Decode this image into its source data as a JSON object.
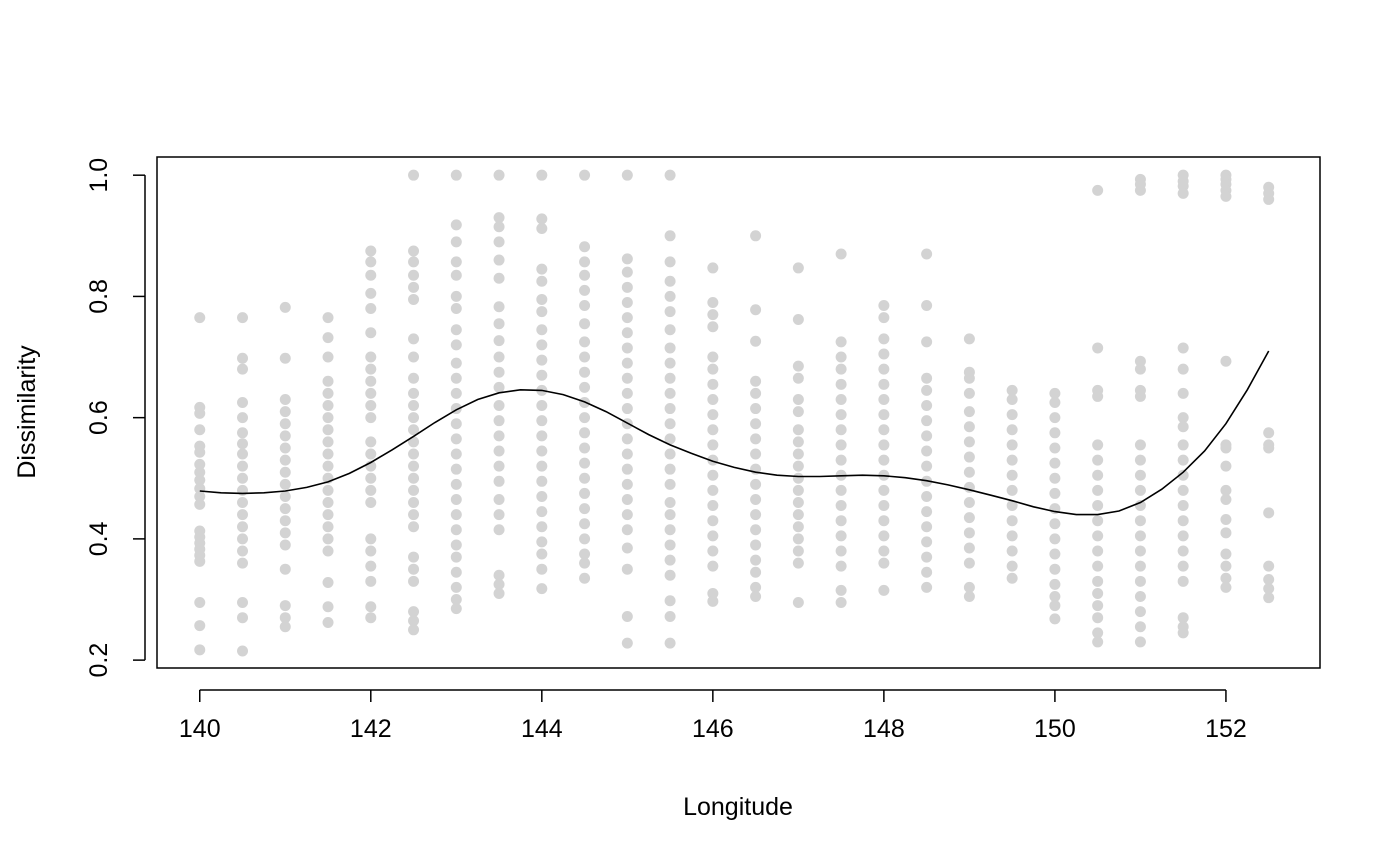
{
  "chart_data": {
    "type": "scatter",
    "xlabel": "Longitude",
    "ylabel": "Dissimilarity",
    "xlim": [
      139.5,
      153.1
    ],
    "ylim": [
      0.187,
      1.03
    ],
    "x_ticks": [
      140,
      142,
      144,
      146,
      148,
      150,
      152
    ],
    "y_ticks": [
      0.2,
      0.4,
      0.6,
      0.8,
      1.0
    ],
    "x_tick_labels": [
      "140",
      "142",
      "144",
      "146",
      "148",
      "150",
      "152"
    ],
    "y_tick_labels": [
      "0.2",
      "0.4",
      "0.6",
      "0.8",
      "1.0"
    ],
    "grid": false,
    "legend": "none",
    "point_color": "#d3d3d3",
    "line_color": "#000000",
    "points": [
      {
        "x": 140.0,
        "y": [
          0.765,
          0.617,
          0.607,
          0.58,
          0.553,
          0.543,
          0.523,
          0.51,
          0.497,
          0.483,
          0.47,
          0.457,
          0.413,
          0.403,
          0.393,
          0.383,
          0.373,
          0.363,
          0.295,
          0.257,
          0.217
        ]
      },
      {
        "x": 140.5,
        "y": [
          0.765,
          0.698,
          0.68,
          0.625,
          0.6,
          0.575,
          0.557,
          0.54,
          0.52,
          0.5,
          0.48,
          0.46,
          0.44,
          0.42,
          0.4,
          0.38,
          0.36,
          0.295,
          0.27,
          0.215
        ]
      },
      {
        "x": 141.0,
        "y": [
          0.782,
          0.698,
          0.63,
          0.61,
          0.59,
          0.57,
          0.55,
          0.53,
          0.51,
          0.49,
          0.47,
          0.45,
          0.43,
          0.41,
          0.39,
          0.35,
          0.29,
          0.27,
          0.255
        ]
      },
      {
        "x": 141.5,
        "y": [
          0.765,
          0.732,
          0.7,
          0.66,
          0.64,
          0.62,
          0.6,
          0.58,
          0.56,
          0.54,
          0.52,
          0.5,
          0.48,
          0.46,
          0.44,
          0.42,
          0.4,
          0.38,
          0.328,
          0.288,
          0.262
        ]
      },
      {
        "x": 142.0,
        "y": [
          0.875,
          0.857,
          0.835,
          0.805,
          0.78,
          0.74,
          0.7,
          0.68,
          0.66,
          0.64,
          0.62,
          0.6,
          0.56,
          0.54,
          0.52,
          0.5,
          0.48,
          0.46,
          0.4,
          0.38,
          0.355,
          0.33,
          0.288,
          0.27
        ]
      },
      {
        "x": 142.5,
        "y": [
          1.0,
          0.875,
          0.857,
          0.835,
          0.815,
          0.795,
          0.73,
          0.7,
          0.665,
          0.64,
          0.62,
          0.6,
          0.58,
          0.56,
          0.54,
          0.52,
          0.5,
          0.48,
          0.46,
          0.44,
          0.42,
          0.37,
          0.35,
          0.33,
          0.28,
          0.265,
          0.25
        ]
      },
      {
        "x": 143.0,
        "y": [
          1.0,
          0.918,
          0.89,
          0.857,
          0.835,
          0.8,
          0.78,
          0.745,
          0.72,
          0.69,
          0.665,
          0.64,
          0.615,
          0.59,
          0.565,
          0.54,
          0.515,
          0.49,
          0.465,
          0.44,
          0.415,
          0.39,
          0.37,
          0.345,
          0.32,
          0.3,
          0.285
        ]
      },
      {
        "x": 143.5,
        "y": [
          1.0,
          0.93,
          0.915,
          0.89,
          0.86,
          0.83,
          0.783,
          0.755,
          0.727,
          0.7,
          0.675,
          0.65,
          0.62,
          0.595,
          0.57,
          0.545,
          0.52,
          0.495,
          0.465,
          0.44,
          0.415,
          0.34,
          0.325,
          0.31
        ]
      },
      {
        "x": 144.0,
        "y": [
          1.0,
          0.928,
          0.912,
          0.845,
          0.825,
          0.795,
          0.775,
          0.745,
          0.72,
          0.695,
          0.67,
          0.645,
          0.62,
          0.595,
          0.57,
          0.545,
          0.52,
          0.495,
          0.47,
          0.445,
          0.42,
          0.395,
          0.375,
          0.35,
          0.318
        ]
      },
      {
        "x": 144.5,
        "y": [
          1.0,
          0.882,
          0.857,
          0.835,
          0.81,
          0.785,
          0.755,
          0.725,
          0.7,
          0.675,
          0.65,
          0.625,
          0.6,
          0.575,
          0.55,
          0.525,
          0.5,
          0.475,
          0.45,
          0.425,
          0.4,
          0.375,
          0.36,
          0.335
        ]
      },
      {
        "x": 145.0,
        "y": [
          1.0,
          0.862,
          0.84,
          0.815,
          0.79,
          0.765,
          0.74,
          0.715,
          0.69,
          0.665,
          0.64,
          0.615,
          0.59,
          0.565,
          0.54,
          0.515,
          0.49,
          0.465,
          0.44,
          0.415,
          0.385,
          0.35,
          0.272,
          0.228
        ]
      },
      {
        "x": 145.5,
        "y": [
          1.0,
          0.9,
          0.857,
          0.825,
          0.8,
          0.775,
          0.745,
          0.715,
          0.69,
          0.665,
          0.64,
          0.615,
          0.59,
          0.565,
          0.54,
          0.515,
          0.49,
          0.46,
          0.44,
          0.415,
          0.39,
          0.365,
          0.34,
          0.298,
          0.272,
          0.228
        ]
      },
      {
        "x": 146.0,
        "y": [
          0.847,
          0.79,
          0.77,
          0.75,
          0.7,
          0.68,
          0.655,
          0.63,
          0.605,
          0.58,
          0.555,
          0.53,
          0.505,
          0.48,
          0.455,
          0.43,
          0.405,
          0.38,
          0.355,
          0.31,
          0.297
        ]
      },
      {
        "x": 146.5,
        "y": [
          0.9,
          0.778,
          0.726,
          0.66,
          0.64,
          0.615,
          0.59,
          0.565,
          0.54,
          0.515,
          0.49,
          0.465,
          0.44,
          0.415,
          0.39,
          0.365,
          0.345,
          0.32,
          0.305
        ]
      },
      {
        "x": 147.0,
        "y": [
          0.847,
          0.762,
          0.685,
          0.665,
          0.63,
          0.61,
          0.58,
          0.56,
          0.54,
          0.52,
          0.5,
          0.48,
          0.46,
          0.44,
          0.42,
          0.4,
          0.38,
          0.36,
          0.295
        ]
      },
      {
        "x": 147.5,
        "y": [
          0.87,
          0.725,
          0.7,
          0.68,
          0.655,
          0.63,
          0.605,
          0.58,
          0.555,
          0.53,
          0.505,
          0.48,
          0.455,
          0.43,
          0.405,
          0.38,
          0.355,
          0.315,
          0.295
        ]
      },
      {
        "x": 148.0,
        "y": [
          0.785,
          0.765,
          0.73,
          0.705,
          0.68,
          0.655,
          0.63,
          0.605,
          0.58,
          0.555,
          0.53,
          0.505,
          0.48,
          0.455,
          0.43,
          0.405,
          0.38,
          0.36,
          0.315
        ]
      },
      {
        "x": 148.5,
        "y": [
          0.87,
          0.785,
          0.725,
          0.665,
          0.645,
          0.62,
          0.595,
          0.57,
          0.545,
          0.52,
          0.495,
          0.47,
          0.445,
          0.42,
          0.395,
          0.37,
          0.345,
          0.32
        ]
      },
      {
        "x": 149.0,
        "y": [
          0.73,
          0.675,
          0.665,
          0.64,
          0.61,
          0.585,
          0.56,
          0.535,
          0.51,
          0.485,
          0.46,
          0.435,
          0.41,
          0.385,
          0.36,
          0.32,
          0.305
        ]
      },
      {
        "x": 149.5,
        "y": [
          0.645,
          0.63,
          0.605,
          0.58,
          0.555,
          0.53,
          0.505,
          0.48,
          0.455,
          0.43,
          0.405,
          0.38,
          0.355,
          0.335
        ]
      },
      {
        "x": 150.0,
        "y": [
          0.64,
          0.625,
          0.6,
          0.575,
          0.55,
          0.525,
          0.5,
          0.475,
          0.45,
          0.425,
          0.4,
          0.375,
          0.35,
          0.325,
          0.305,
          0.29,
          0.268
        ]
      },
      {
        "x": 150.5,
        "y": [
          0.975,
          0.715,
          0.645,
          0.635,
          0.555,
          0.53,
          0.505,
          0.48,
          0.455,
          0.43,
          0.405,
          0.38,
          0.355,
          0.33,
          0.31,
          0.29,
          0.27,
          0.245,
          0.23
        ]
      },
      {
        "x": 151.0,
        "y": [
          0.993,
          0.985,
          0.975,
          0.693,
          0.68,
          0.645,
          0.635,
          0.555,
          0.53,
          0.505,
          0.48,
          0.455,
          0.43,
          0.405,
          0.38,
          0.355,
          0.33,
          0.305,
          0.28,
          0.255,
          0.23
        ]
      },
      {
        "x": 151.5,
        "y": [
          1.0,
          0.99,
          0.982,
          0.97,
          0.715,
          0.68,
          0.64,
          0.6,
          0.585,
          0.555,
          0.53,
          0.505,
          0.48,
          0.455,
          0.43,
          0.405,
          0.38,
          0.355,
          0.33,
          0.27,
          0.255,
          0.245
        ]
      },
      {
        "x": 152.0,
        "y": [
          1.0,
          0.993,
          0.985,
          0.975,
          0.965,
          0.693,
          0.555,
          0.55,
          0.52,
          0.48,
          0.465,
          0.432,
          0.41,
          0.375,
          0.355,
          0.335,
          0.32
        ]
      },
      {
        "x": 152.5,
        "y": [
          0.98,
          0.97,
          0.96,
          0.575,
          0.555,
          0.55,
          0.443,
          0.355,
          0.333,
          0.318,
          0.303
        ]
      }
    ],
    "smooth_line": {
      "x": [
        140.0,
        140.25,
        140.5,
        140.75,
        141.0,
        141.25,
        141.5,
        141.75,
        142.0,
        142.25,
        142.5,
        142.75,
        143.0,
        143.25,
        143.5,
        143.75,
        144.0,
        144.25,
        144.5,
        144.75,
        145.0,
        145.25,
        145.5,
        145.75,
        146.0,
        146.25,
        146.5,
        146.75,
        147.0,
        147.25,
        147.5,
        147.75,
        148.0,
        148.25,
        148.5,
        148.75,
        149.0,
        149.25,
        149.5,
        149.75,
        150.0,
        150.25,
        150.5,
        150.75,
        151.0,
        151.25,
        151.5,
        151.75,
        152.0,
        152.25,
        152.5
      ],
      "y": [
        0.479,
        0.476,
        0.475,
        0.476,
        0.479,
        0.485,
        0.494,
        0.508,
        0.526,
        0.547,
        0.569,
        0.592,
        0.613,
        0.63,
        0.641,
        0.646,
        0.645,
        0.638,
        0.626,
        0.61,
        0.591,
        0.572,
        0.555,
        0.541,
        0.528,
        0.518,
        0.51,
        0.505,
        0.503,
        0.503,
        0.504,
        0.505,
        0.504,
        0.501,
        0.496,
        0.489,
        0.481,
        0.472,
        0.463,
        0.453,
        0.445,
        0.44,
        0.44,
        0.446,
        0.46,
        0.482,
        0.51,
        0.545,
        0.59,
        0.646,
        0.71
      ]
    }
  }
}
